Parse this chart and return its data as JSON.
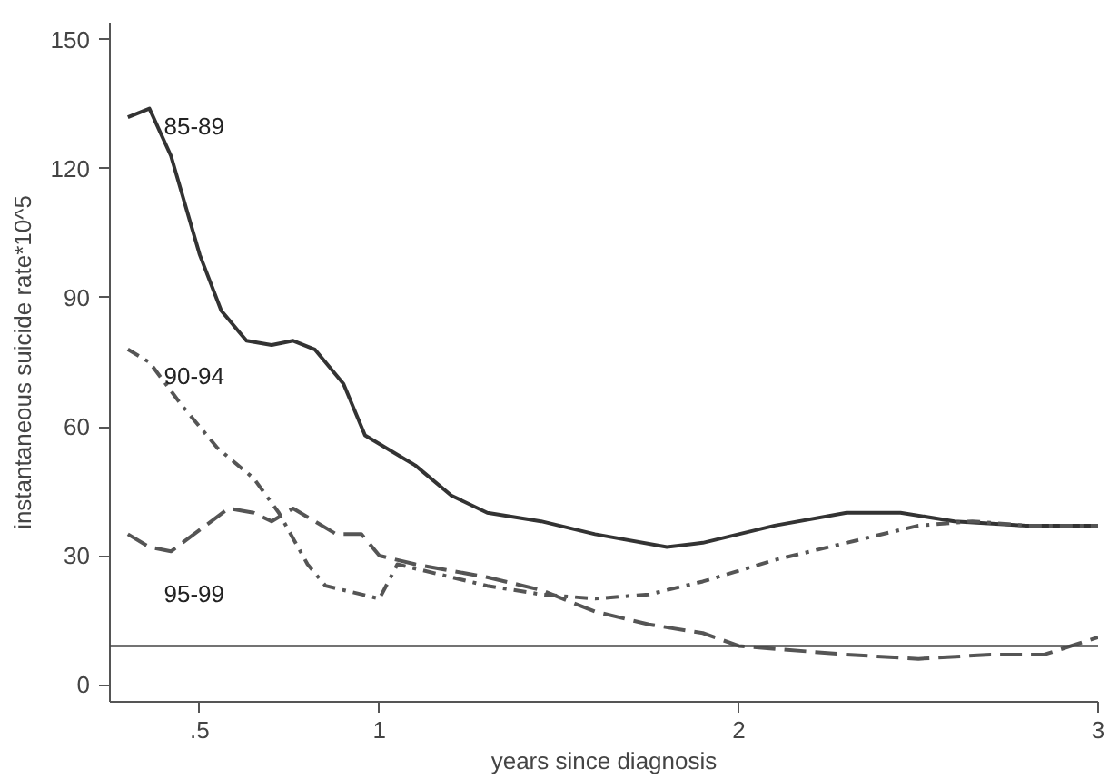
{
  "chart_data": {
    "type": "line",
    "xlabel": "years since diagnosis",
    "ylabel": "instantaneous suicide rate*10^5",
    "xlim": [
      0.25,
      3
    ],
    "ylim": [
      -4,
      154
    ],
    "xticks": [
      {
        "value": 0.5,
        "label": ".5"
      },
      1,
      2,
      3
    ],
    "yticks": [
      0,
      30,
      60,
      90,
      120,
      150
    ],
    "grid": false,
    "ref_lines": [
      {
        "axis": "y",
        "value": 9,
        "color": "#444444"
      }
    ],
    "series": [
      {
        "name": "85-89",
        "color": "#333333",
        "line_style": "solid",
        "x": [
          0.3,
          0.36,
          0.42,
          0.5,
          0.56,
          0.63,
          0.7,
          0.76,
          0.82,
          0.9,
          0.96,
          1.1,
          1.2,
          1.3,
          1.45,
          1.6,
          1.8,
          1.9,
          2.1,
          2.3,
          2.45,
          2.6,
          2.8,
          3.0
        ],
        "values": [
          132,
          134,
          123,
          100,
          87,
          80,
          79,
          80,
          78,
          70,
          58,
          51,
          44,
          40,
          38,
          35,
          32,
          33,
          37,
          40,
          40,
          38,
          37,
          37
        ]
      },
      {
        "name": "90-94",
        "color": "#555555",
        "line_style": "dashdot",
        "x": [
          0.3,
          0.36,
          0.45,
          0.55,
          0.65,
          0.72,
          0.8,
          0.85,
          0.95,
          1.0,
          1.05,
          1.1,
          1.3,
          1.45,
          1.6,
          1.75,
          1.9,
          2.1,
          2.3,
          2.5,
          2.65,
          2.8,
          3.0
        ],
        "values": [
          78,
          75,
          65,
          55,
          48,
          40,
          28,
          23,
          21,
          20,
          28,
          27,
          23,
          21,
          20,
          21,
          24,
          29,
          33,
          37,
          38,
          37,
          37
        ]
      },
      {
        "name": "95-99",
        "color": "#555555",
        "line_style": "dashed",
        "x": [
          0.3,
          0.36,
          0.42,
          0.5,
          0.58,
          0.65,
          0.7,
          0.76,
          0.82,
          0.88,
          0.95,
          1.0,
          1.1,
          1.3,
          1.45,
          1.6,
          1.75,
          1.9,
          2.0,
          2.3,
          2.5,
          2.7,
          2.85,
          3.0
        ],
        "values": [
          35,
          32,
          31,
          36,
          41,
          40,
          38,
          41,
          38,
          35,
          35,
          30,
          28,
          25,
          22,
          17,
          14,
          12,
          9,
          7,
          6,
          7,
          7,
          11
        ]
      }
    ]
  }
}
